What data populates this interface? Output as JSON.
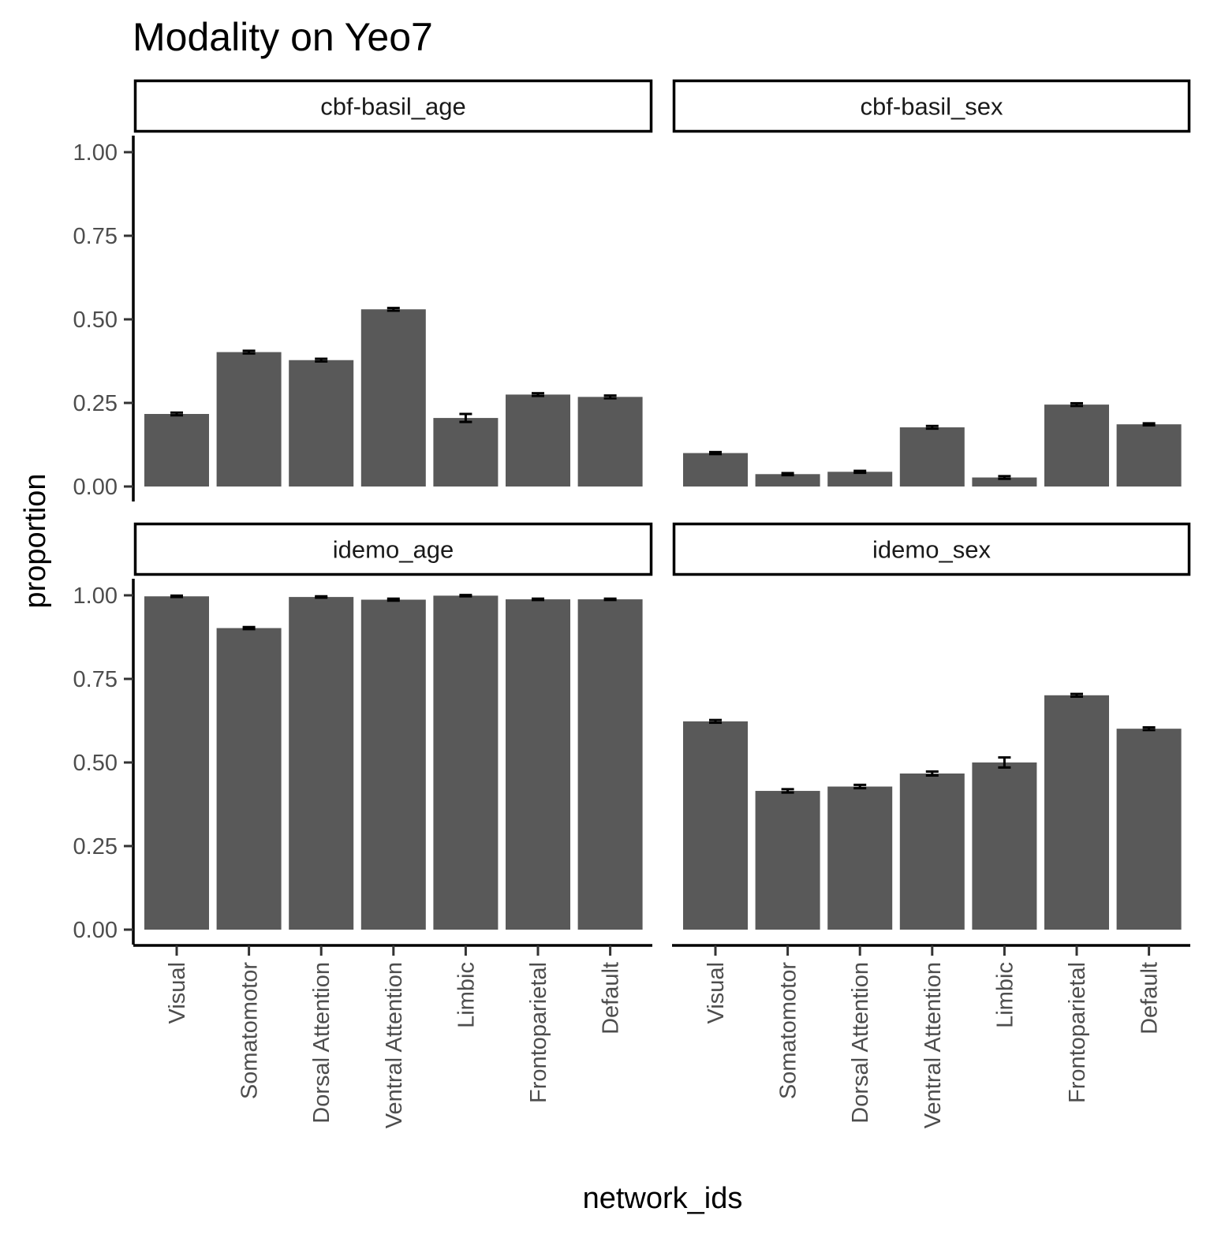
{
  "chart_data": {
    "type": "bar",
    "title": "Modality on Yeo7",
    "xlabel": "network_ids",
    "ylabel": "proportion",
    "ylim": [
      0,
      1
    ],
    "yticks": [
      "0.00",
      "0.25",
      "0.50",
      "0.75",
      "1.00"
    ],
    "categories": [
      "Visual",
      "Somatomotor",
      "Dorsal Attention",
      "Ventral Attention",
      "Limbic",
      "Frontoparietal",
      "Default"
    ],
    "bar_color": "#595959",
    "grid": false,
    "legend": "none",
    "facets": [
      {
        "label": "cbf-basil_age",
        "values": [
          0.217,
          0.402,
          0.378,
          0.53,
          0.205,
          0.275,
          0.268
        ],
        "errors": [
          0.004,
          0.004,
          0.004,
          0.004,
          0.012,
          0.004,
          0.004
        ]
      },
      {
        "label": "cbf-basil_sex",
        "values": [
          0.1,
          0.037,
          0.044,
          0.177,
          0.027,
          0.245,
          0.186
        ],
        "errors": [
          0.003,
          0.003,
          0.003,
          0.004,
          0.004,
          0.004,
          0.003
        ]
      },
      {
        "label": "idemo_age",
        "values": [
          0.997,
          0.902,
          0.995,
          0.987,
          0.999,
          0.988,
          0.988
        ],
        "errors": [
          0.002,
          0.003,
          0.002,
          0.003,
          0.002,
          0.002,
          0.002
        ]
      },
      {
        "label": "idemo_sex",
        "values": [
          0.623,
          0.415,
          0.428,
          0.467,
          0.5,
          0.701,
          0.601
        ],
        "errors": [
          0.004,
          0.005,
          0.005,
          0.006,
          0.015,
          0.004,
          0.004
        ]
      }
    ]
  }
}
